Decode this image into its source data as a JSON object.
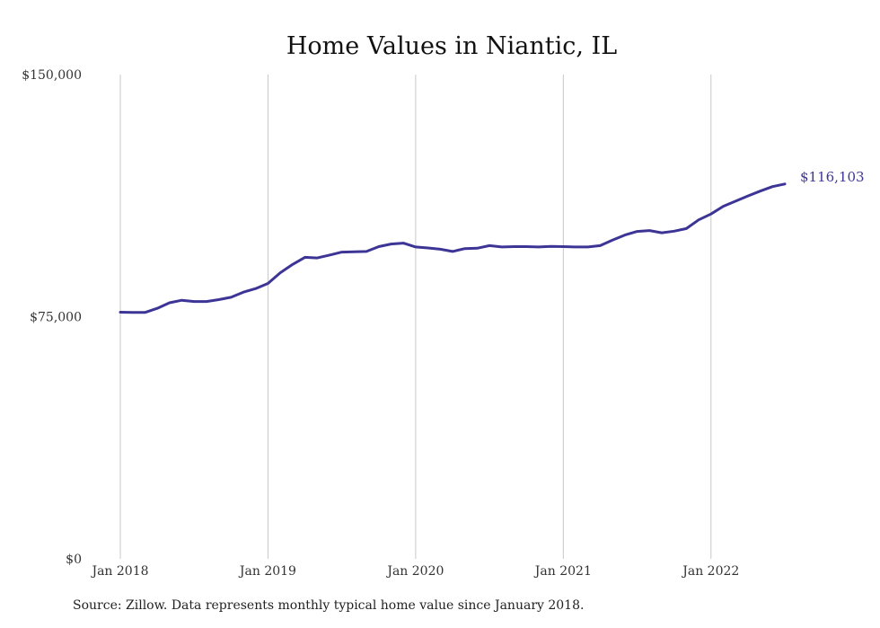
{
  "chart_data": {
    "type": "line",
    "title": "Home Values in Niantic, IL",
    "xlabel": "",
    "ylabel": "",
    "ylim": [
      0,
      150000
    ],
    "y_ticks": [
      {
        "value": 0,
        "label": "$0"
      },
      {
        "value": 75000,
        "label": "$75,000"
      },
      {
        "value": 150000,
        "label": "$150,000"
      }
    ],
    "x_range": [
      "2018-01",
      "2022-07"
    ],
    "x_ticks": [
      {
        "x": "2018-01",
        "label": "Jan 2018"
      },
      {
        "x": "2019-01",
        "label": "Jan 2019"
      },
      {
        "x": "2020-01",
        "label": "Jan 2020"
      },
      {
        "x": "2021-01",
        "label": "Jan 2021"
      },
      {
        "x": "2022-01",
        "label": "Jan 2022"
      }
    ],
    "grid": {
      "vertical": true,
      "horizontal": false
    },
    "line_color": "#3d3596",
    "grid_color": "#c8c8c8",
    "end_label": "$116,103",
    "series": [
      {
        "x": [
          "2018-01",
          "2018-02",
          "2018-03",
          "2018-04",
          "2018-05",
          "2018-06",
          "2018-07",
          "2018-08",
          "2018-09",
          "2018-10",
          "2018-11",
          "2018-12",
          "2019-01",
          "2019-02",
          "2019-03",
          "2019-04",
          "2019-05",
          "2019-06",
          "2019-07",
          "2019-08",
          "2019-09",
          "2019-10",
          "2019-11",
          "2019-12",
          "2020-01",
          "2020-02",
          "2020-03",
          "2020-04",
          "2020-05",
          "2020-06",
          "2020-07",
          "2020-08",
          "2020-09",
          "2020-10",
          "2020-11",
          "2020-12",
          "2021-01",
          "2021-02",
          "2021-03",
          "2021-04",
          "2021-05",
          "2021-06",
          "2021-07",
          "2021-08",
          "2021-09",
          "2021-10",
          "2021-11",
          "2021-12",
          "2022-01",
          "2022-02",
          "2022-03",
          "2022-04",
          "2022-05",
          "2022-06",
          "2022-07"
        ],
        "values": [
          76400,
          76300,
          76300,
          77600,
          79300,
          80100,
          79700,
          79700,
          80300,
          81000,
          82600,
          83700,
          85300,
          88600,
          91200,
          93400,
          93200,
          94100,
          95000,
          95100,
          95200,
          96700,
          97500,
          97800,
          96600,
          96300,
          95900,
          95200,
          96100,
          96200,
          97000,
          96600,
          96700,
          96700,
          96600,
          96800,
          96700,
          96600,
          96600,
          97000,
          98700,
          100300,
          101400,
          101700,
          101000,
          101500,
          102300,
          105000,
          106800,
          109200,
          110800,
          112400,
          113900,
          115300,
          116103
        ]
      }
    ]
  },
  "footer": {
    "source": "Source: Zillow. Data represents monthly typical home value since January 2018."
  }
}
